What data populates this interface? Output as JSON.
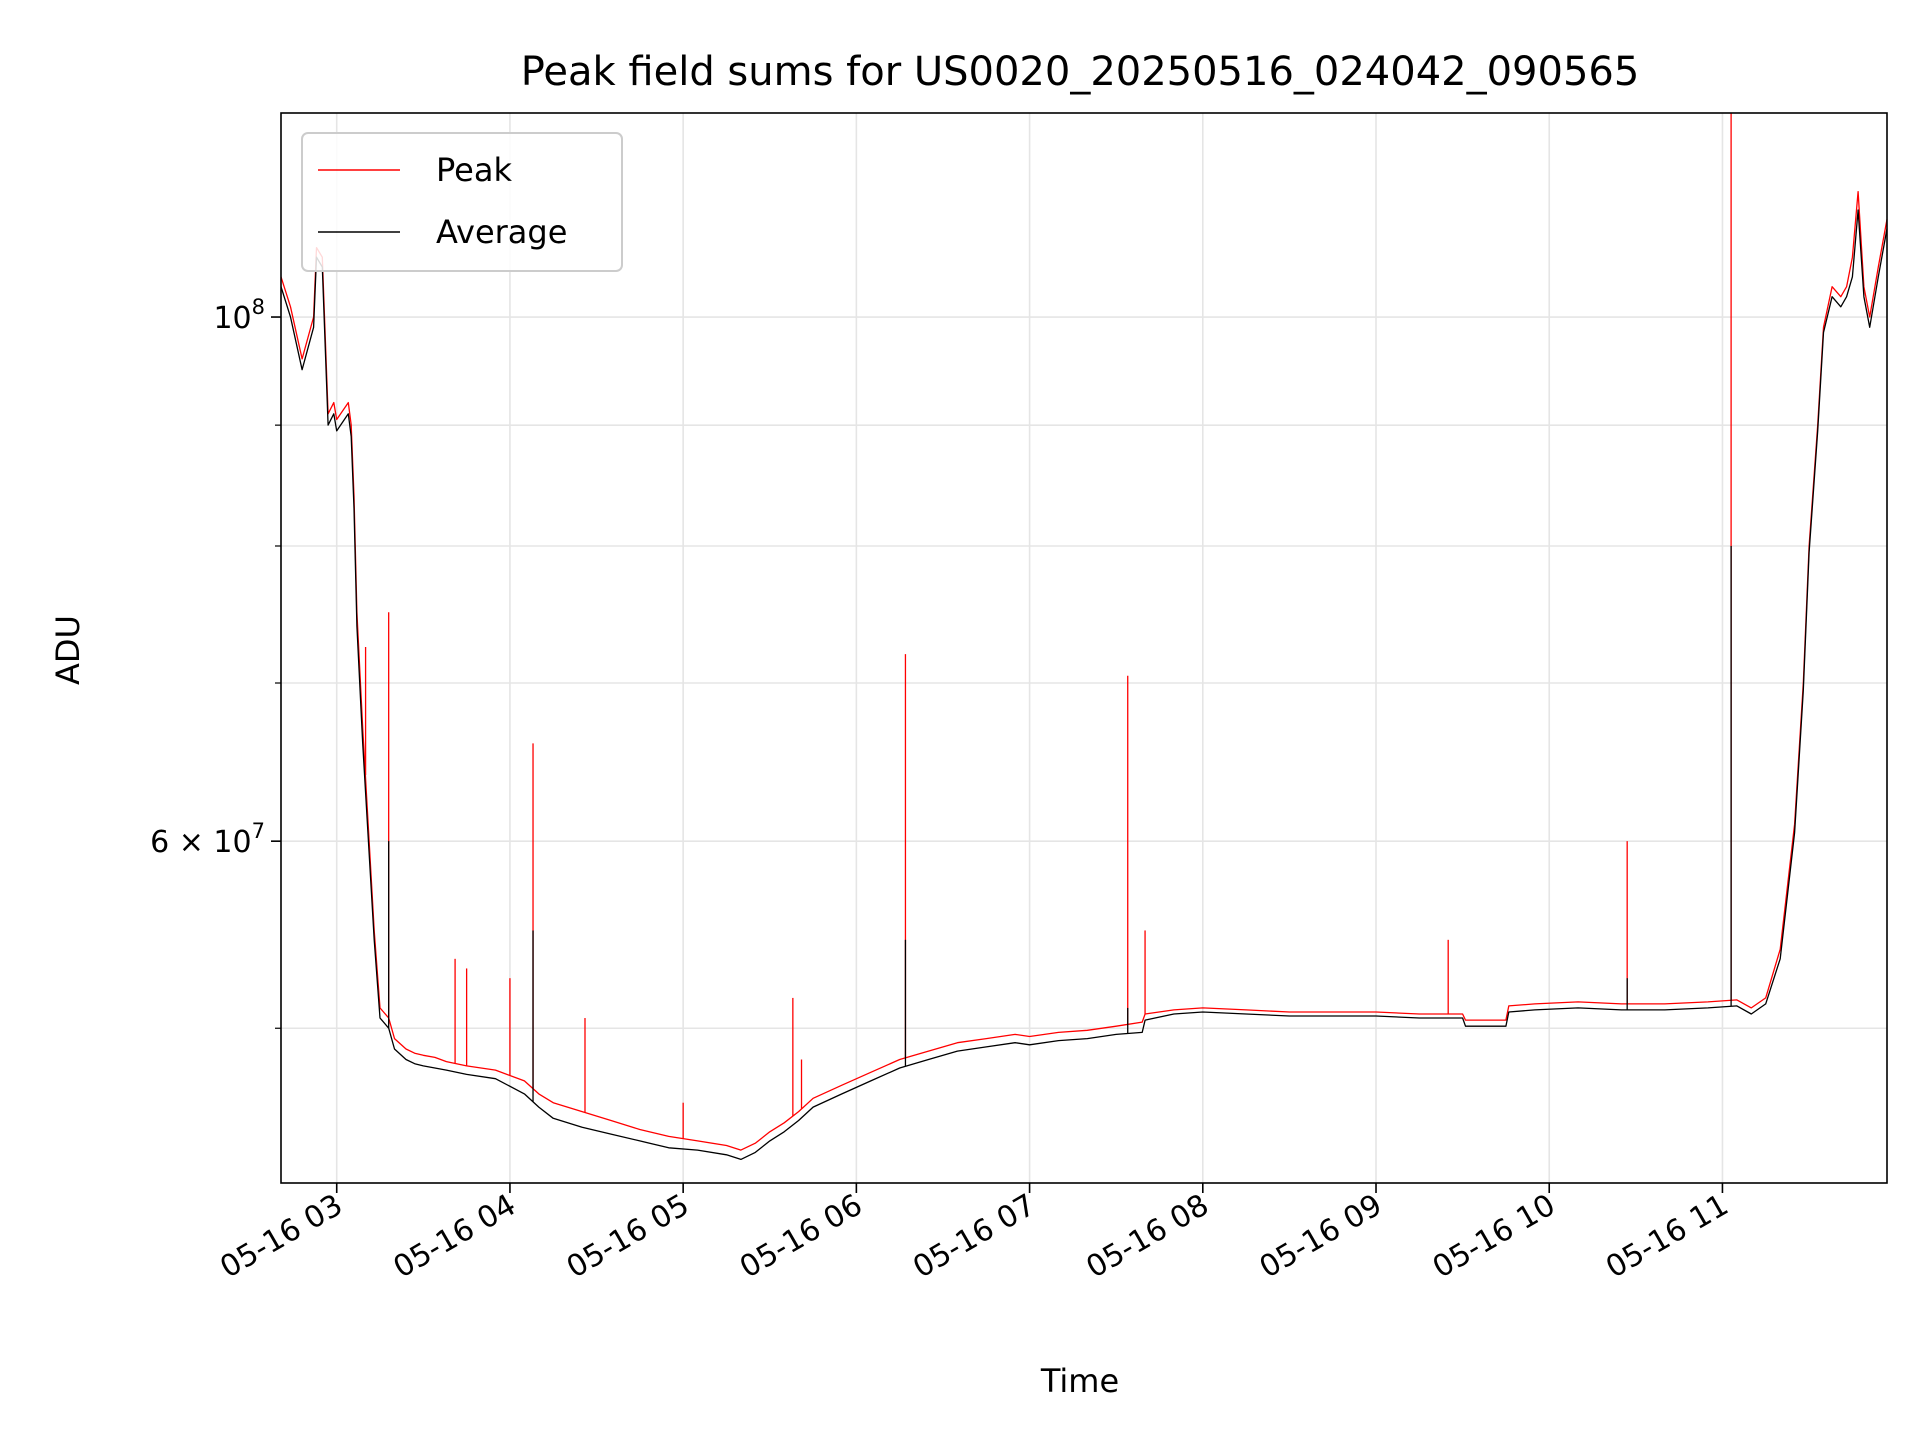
{
  "chart_data": {
    "type": "line",
    "title": "Peak field sums for US0020_20250516_024042_090565",
    "xlabel": "Time",
    "ylabel": "ADU",
    "x_is_datetime": true,
    "xlim": [
      "2025-05-16 02:40:42",
      "2025-05-16 11:57:00"
    ],
    "ylim": [
      43000000,
      122000000
    ],
    "yscale": "log",
    "grid": true,
    "legend_position": "top-left",
    "x_ticks": [
      {
        "value": "2025-05-16 03:00",
        "label": "05-16 03"
      },
      {
        "value": "2025-05-16 04:00",
        "label": "05-16 04"
      },
      {
        "value": "2025-05-16 05:00",
        "label": "05-16 05"
      },
      {
        "value": "2025-05-16 06:00",
        "label": "05-16 06"
      },
      {
        "value": "2025-05-16 07:00",
        "label": "05-16 07"
      },
      {
        "value": "2025-05-16 08:00",
        "label": "05-16 08"
      },
      {
        "value": "2025-05-16 09:00",
        "label": "05-16 09"
      },
      {
        "value": "2025-05-16 10:00",
        "label": "05-16 10"
      },
      {
        "value": "2025-05-16 11:00",
        "label": "05-16 11"
      }
    ],
    "y_ticks_major": [
      {
        "value": 60000000,
        "label": "6 × 10",
        "exp": "7"
      },
      {
        "value": 100000000,
        "label": "10",
        "exp": "8"
      }
    ],
    "y_ticks_minor": [
      50000000,
      70000000,
      80000000,
      90000000
    ],
    "series": [
      {
        "name": "Peak",
        "color": "#ff0000",
        "x": [
          "2025-05-16 02:40:42",
          "2025-05-16 02:44",
          "2025-05-16 02:48",
          "2025-05-16 02:52",
          "2025-05-16 02:53",
          "2025-05-16 02:55",
          "2025-05-16 02:57",
          "2025-05-16 02:59",
          "2025-05-16 03:00",
          "2025-05-16 03:04",
          "2025-05-16 03:05",
          "2025-05-16 03:06",
          "2025-05-16 03:07",
          "2025-05-16 03:09",
          "2025-05-16 03:13",
          "2025-05-16 03:15",
          "2025-05-16 03:18",
          "2025-05-16 03:20",
          "2025-05-16 03:24",
          "2025-05-16 03:27",
          "2025-05-16 03:30",
          "2025-05-16 03:34",
          "2025-05-16 03:38",
          "2025-05-16 03:45",
          "2025-05-16 03:55",
          "2025-05-16 04:05",
          "2025-05-16 04:10",
          "2025-05-16 04:15",
          "2025-05-16 04:25",
          "2025-05-16 04:35",
          "2025-05-16 04:45",
          "2025-05-16 04:55",
          "2025-05-16 05:05",
          "2025-05-16 05:15",
          "2025-05-16 05:20",
          "2025-05-16 05:25",
          "2025-05-16 05:30",
          "2025-05-16 05:35",
          "2025-05-16 05:40",
          "2025-05-16 05:45",
          "2025-05-16 05:55",
          "2025-05-16 06:05",
          "2025-05-16 06:15",
          "2025-05-16 06:25",
          "2025-05-16 06:35",
          "2025-05-16 06:45",
          "2025-05-16 06:55",
          "2025-05-16 07:00",
          "2025-05-16 07:10",
          "2025-05-16 07:20",
          "2025-05-16 07:30",
          "2025-05-16 07:39",
          "2025-05-16 07:40",
          "2025-05-16 07:50",
          "2025-05-16 08:00",
          "2025-05-16 08:15",
          "2025-05-16 08:30",
          "2025-05-16 08:45",
          "2025-05-16 09:00",
          "2025-05-16 09:15",
          "2025-05-16 09:30",
          "2025-05-16 09:31",
          "2025-05-16 09:45",
          "2025-05-16 09:46",
          "2025-05-16 09:55",
          "2025-05-16 10:10",
          "2025-05-16 10:25",
          "2025-05-16 10:40",
          "2025-05-16 10:55",
          "2025-05-16 11:05",
          "2025-05-16 11:10",
          "2025-05-16 11:15",
          "2025-05-16 11:20",
          "2025-05-16 11:25",
          "2025-05-16 11:28",
          "2025-05-16 11:30",
          "2025-05-16 11:33",
          "2025-05-16 11:35",
          "2025-05-16 11:38",
          "2025-05-16 11:41",
          "2025-05-16 11:43",
          "2025-05-16 11:45",
          "2025-05-16 11:47",
          "2025-05-16 11:49",
          "2025-05-16 11:51",
          "2025-05-16 11:54",
          "2025-05-16 11:57"
        ],
        "values": [
          104000000,
          101000000,
          96000000,
          100000000,
          107000000,
          106000000,
          91000000,
          92000000,
          90500000,
          92000000,
          90000000,
          84000000,
          75000000,
          67000000,
          55000000,
          51000000,
          50500000,
          49500000,
          49000000,
          48800000,
          48700000,
          48600000,
          48400000,
          48200000,
          48000000,
          47500000,
          46900000,
          46500000,
          46100000,
          45700000,
          45300000,
          45000000,
          44800000,
          44600000,
          44400000,
          44700000,
          45200000,
          45600000,
          46100000,
          46700000,
          47300000,
          47900000,
          48500000,
          48900000,
          49300000,
          49500000,
          49700000,
          49600000,
          49800000,
          49900000,
          50100000,
          50300000,
          50700000,
          50900000,
          51000000,
          50900000,
          50800000,
          50800000,
          50800000,
          50700000,
          50700000,
          50400000,
          50400000,
          51100000,
          51200000,
          51300000,
          51200000,
          51200000,
          51300000,
          51400000,
          51000000,
          51500000,
          54000000,
          61000000,
          70000000,
          80000000,
          90000000,
          99000000,
          103000000,
          102000000,
          103000000,
          106000000,
          113000000,
          103000000,
          100000000,
          105000000,
          110000000
        ],
        "spikes": [
          {
            "x": "2025-05-16 03:10",
            "value": 72500000
          },
          {
            "x": "2025-05-16 03:18",
            "value": 75000000
          },
          {
            "x": "2025-05-16 03:41",
            "value": 53500000
          },
          {
            "x": "2025-05-16 03:45",
            "value": 53000000
          },
          {
            "x": "2025-05-16 04:00",
            "value": 52500000
          },
          {
            "x": "2025-05-16 04:08",
            "value": 66000000
          },
          {
            "x": "2025-05-16 04:26",
            "value": 50500000
          },
          {
            "x": "2025-05-16 05:00",
            "value": 46500000
          },
          {
            "x": "2025-05-16 05:38",
            "value": 51500000
          },
          {
            "x": "2025-05-16 05:41",
            "value": 48500000
          },
          {
            "x": "2025-05-16 06:17",
            "value": 72000000
          },
          {
            "x": "2025-05-16 07:34",
            "value": 70500000
          },
          {
            "x": "2025-05-16 07:40",
            "value": 55000000
          },
          {
            "x": "2025-05-16 09:25",
            "value": 54500000
          },
          {
            "x": "2025-05-16 10:27",
            "value": 60000000
          },
          {
            "x": "2025-05-16 11:03",
            "value": 122000000
          }
        ]
      },
      {
        "name": "Average",
        "color": "#000000",
        "x": [
          "2025-05-16 02:40:42",
          "2025-05-16 02:44",
          "2025-05-16 02:48",
          "2025-05-16 02:52",
          "2025-05-16 02:53",
          "2025-05-16 02:55",
          "2025-05-16 02:57",
          "2025-05-16 02:59",
          "2025-05-16 03:00",
          "2025-05-16 03:04",
          "2025-05-16 03:05",
          "2025-05-16 03:06",
          "2025-05-16 03:07",
          "2025-05-16 03:09",
          "2025-05-16 03:13",
          "2025-05-16 03:15",
          "2025-05-16 03:18",
          "2025-05-16 03:20",
          "2025-05-16 03:24",
          "2025-05-16 03:27",
          "2025-05-16 03:30",
          "2025-05-16 03:34",
          "2025-05-16 03:38",
          "2025-05-16 03:45",
          "2025-05-16 03:55",
          "2025-05-16 04:05",
          "2025-05-16 04:10",
          "2025-05-16 04:15",
          "2025-05-16 04:25",
          "2025-05-16 04:35",
          "2025-05-16 04:45",
          "2025-05-16 04:55",
          "2025-05-16 05:05",
          "2025-05-16 05:15",
          "2025-05-16 05:20",
          "2025-05-16 05:25",
          "2025-05-16 05:30",
          "2025-05-16 05:35",
          "2025-05-16 05:40",
          "2025-05-16 05:45",
          "2025-05-16 05:55",
          "2025-05-16 06:05",
          "2025-05-16 06:15",
          "2025-05-16 06:25",
          "2025-05-16 06:35",
          "2025-05-16 06:45",
          "2025-05-16 06:55",
          "2025-05-16 07:00",
          "2025-05-16 07:10",
          "2025-05-16 07:20",
          "2025-05-16 07:30",
          "2025-05-16 07:39",
          "2025-05-16 07:40",
          "2025-05-16 07:50",
          "2025-05-16 08:00",
          "2025-05-16 08:15",
          "2025-05-16 08:30",
          "2025-05-16 08:45",
          "2025-05-16 09:00",
          "2025-05-16 09:15",
          "2025-05-16 09:30",
          "2025-05-16 09:31",
          "2025-05-16 09:45",
          "2025-05-16 09:46",
          "2025-05-16 09:55",
          "2025-05-16 10:10",
          "2025-05-16 10:25",
          "2025-05-16 10:40",
          "2025-05-16 10:55",
          "2025-05-16 11:05",
          "2025-05-16 11:10",
          "2025-05-16 11:15",
          "2025-05-16 11:20",
          "2025-05-16 11:25",
          "2025-05-16 11:28",
          "2025-05-16 11:30",
          "2025-05-16 11:33",
          "2025-05-16 11:35",
          "2025-05-16 11:38",
          "2025-05-16 11:41",
          "2025-05-16 11:43",
          "2025-05-16 11:45",
          "2025-05-16 11:47",
          "2025-05-16 11:49",
          "2025-05-16 11:51",
          "2025-05-16 11:54",
          "2025-05-16 11:57"
        ],
        "values": [
          103000000,
          100000000,
          95000000,
          99000000,
          106000000,
          105000000,
          90000000,
          91000000,
          89500000,
          91000000,
          89000000,
          83000000,
          74000000,
          66000000,
          54500000,
          50500000,
          50000000,
          49000000,
          48500000,
          48300000,
          48200000,
          48100000,
          48000000,
          47800000,
          47600000,
          46900000,
          46300000,
          45800000,
          45400000,
          45100000,
          44800000,
          44500000,
          44400000,
          44200000,
          44000000,
          44300000,
          44800000,
          45200000,
          45700000,
          46300000,
          46900000,
          47500000,
          48100000,
          48500000,
          48900000,
          49100000,
          49300000,
          49200000,
          49400000,
          49500000,
          49700000,
          49800000,
          50400000,
          50700000,
          50800000,
          50700000,
          50600000,
          50600000,
          50600000,
          50500000,
          50500000,
          50100000,
          50100000,
          50800000,
          50900000,
          51000000,
          50900000,
          50900000,
          51000000,
          51100000,
          50700000,
          51200000,
          53500000,
          60500000,
          69500000,
          79500000,
          89500000,
          98500000,
          102000000,
          101000000,
          102000000,
          104000000,
          111000000,
          102000000,
          99000000,
          104000000,
          109000000
        ],
        "spikes": [
          {
            "x": "2025-05-16 03:18",
            "value": 60000000
          },
          {
            "x": "2025-05-16 04:08",
            "value": 55000000
          },
          {
            "x": "2025-05-16 06:17",
            "value": 54500000
          },
          {
            "x": "2025-05-16 07:34",
            "value": 51000000
          },
          {
            "x": "2025-05-16 10:27",
            "value": 52500000
          },
          {
            "x": "2025-05-16 11:03",
            "value": 80000000
          }
        ]
      }
    ]
  }
}
